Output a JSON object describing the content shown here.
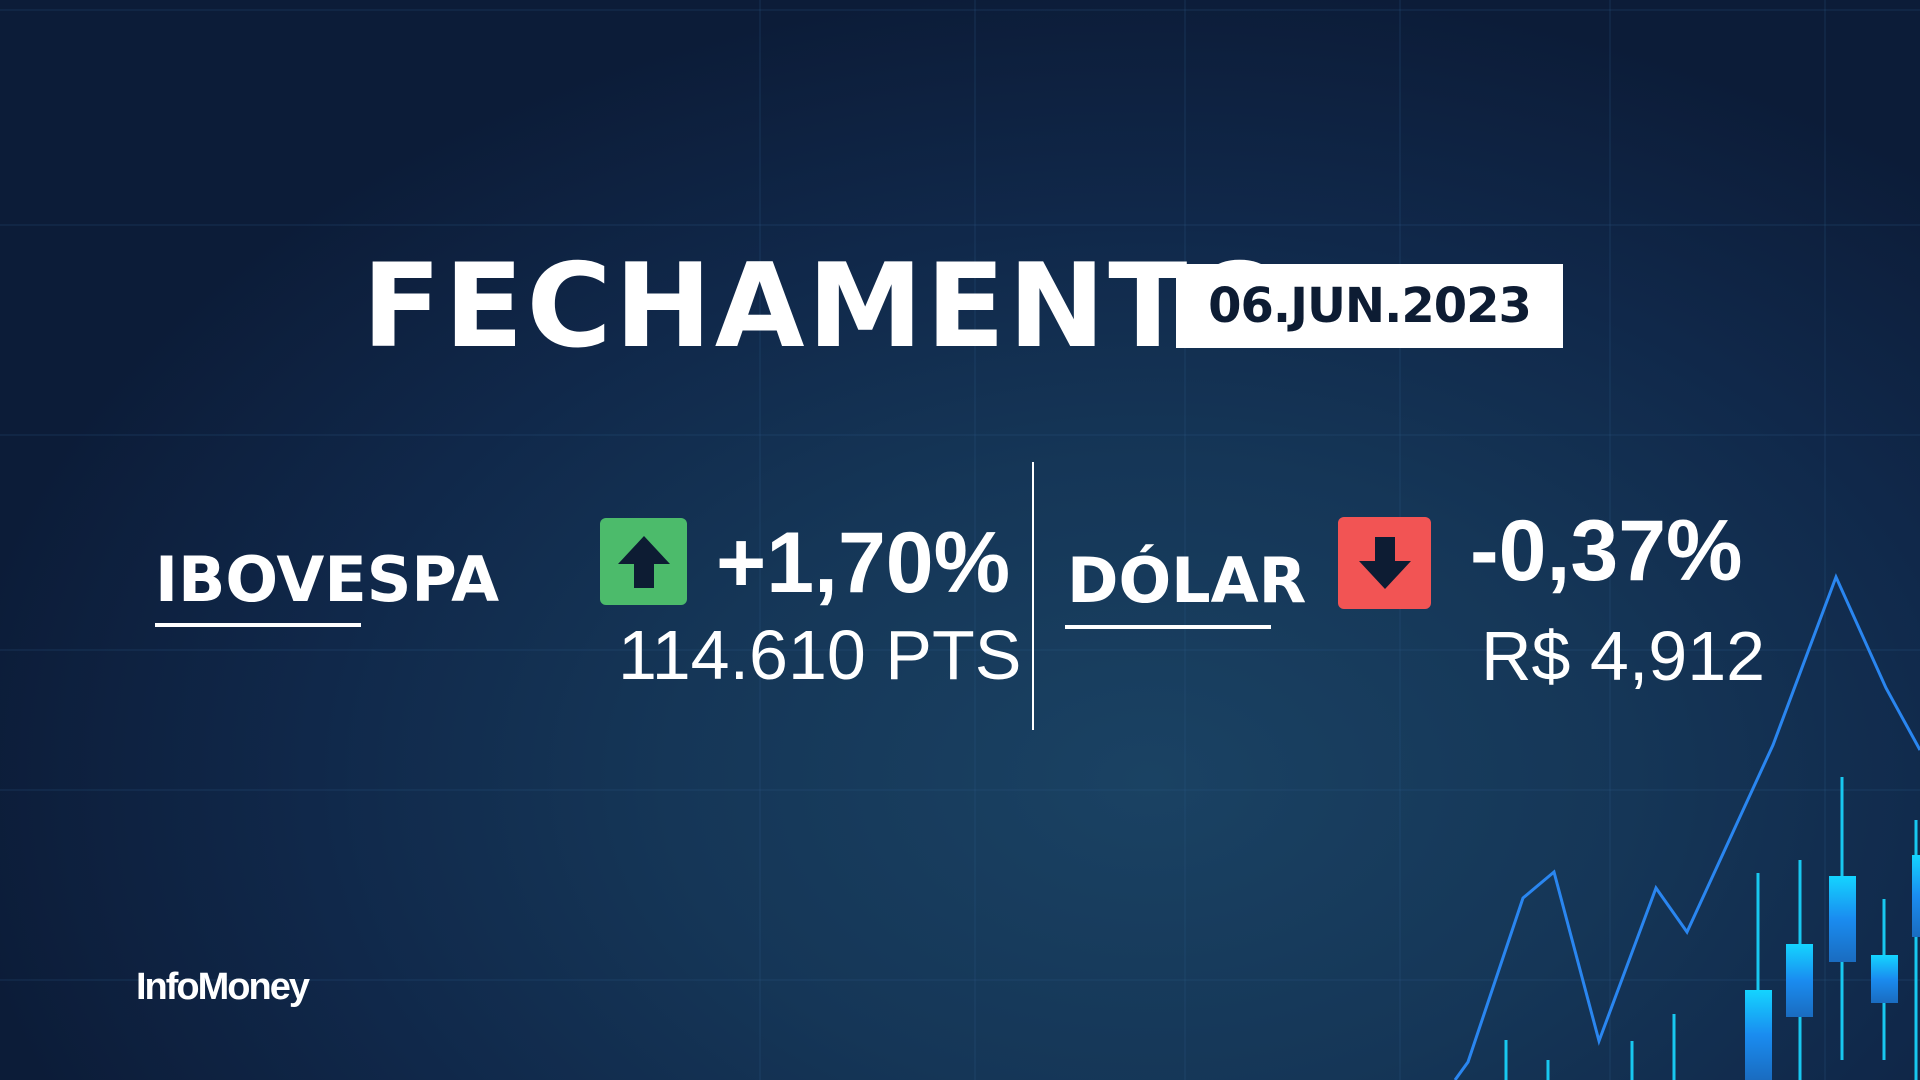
{
  "header": {
    "title": "FECHAMENTO",
    "date": "06.JUN.2023"
  },
  "ibovespa": {
    "label": "IBOVESPA",
    "change": "+1,70%",
    "value": "114.610 PTS",
    "direction": "up",
    "icon": "arrow-up-icon",
    "color": "#4cbb6b"
  },
  "dolar": {
    "label": "DÓLAR",
    "change": "-0,37%",
    "value": "R$ 4,912",
    "direction": "down",
    "icon": "arrow-down-icon",
    "color": "#f25454"
  },
  "brand": {
    "logo": "InfoMoney"
  },
  "colors": {
    "background": "#10284a",
    "chart_line": "#2a86f0",
    "candle": "#18c8f0"
  }
}
